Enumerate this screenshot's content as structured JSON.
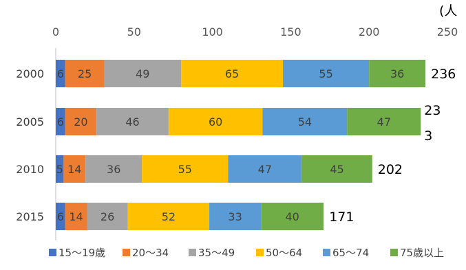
{
  "chart_data": {
    "type": "bar",
    "orientation": "horizontal",
    "stacked": true,
    "unit_label": "(人",
    "categories": [
      "2000",
      "2005",
      "2010",
      "2015"
    ],
    "series": [
      {
        "name": "15～19歳",
        "color": "#4472C4",
        "values": [
          6,
          6,
          5,
          6
        ]
      },
      {
        "name": "20～34",
        "color": "#ED7D31",
        "values": [
          25,
          20,
          14,
          14
        ]
      },
      {
        "name": "35～49",
        "color": "#A5A5A5",
        "values": [
          49,
          46,
          36,
          26
        ]
      },
      {
        "name": "50～64",
        "color": "#FFC000",
        "values": [
          65,
          60,
          55,
          52
        ]
      },
      {
        "name": "65～74",
        "color": "#5B9BD5",
        "values": [
          55,
          54,
          47,
          33
        ]
      },
      {
        "name": "75歳以上",
        "color": "#70AD47",
        "values": [
          36,
          47,
          45,
          40
        ]
      }
    ],
    "totals": [
      "236",
      "233",
      "202",
      "171"
    ],
    "xlim": [
      0,
      250
    ],
    "x_ticks": [
      0,
      50,
      100,
      150,
      200,
      250
    ],
    "grid": false,
    "legend": "bottom",
    "xaxis_position": "top"
  }
}
